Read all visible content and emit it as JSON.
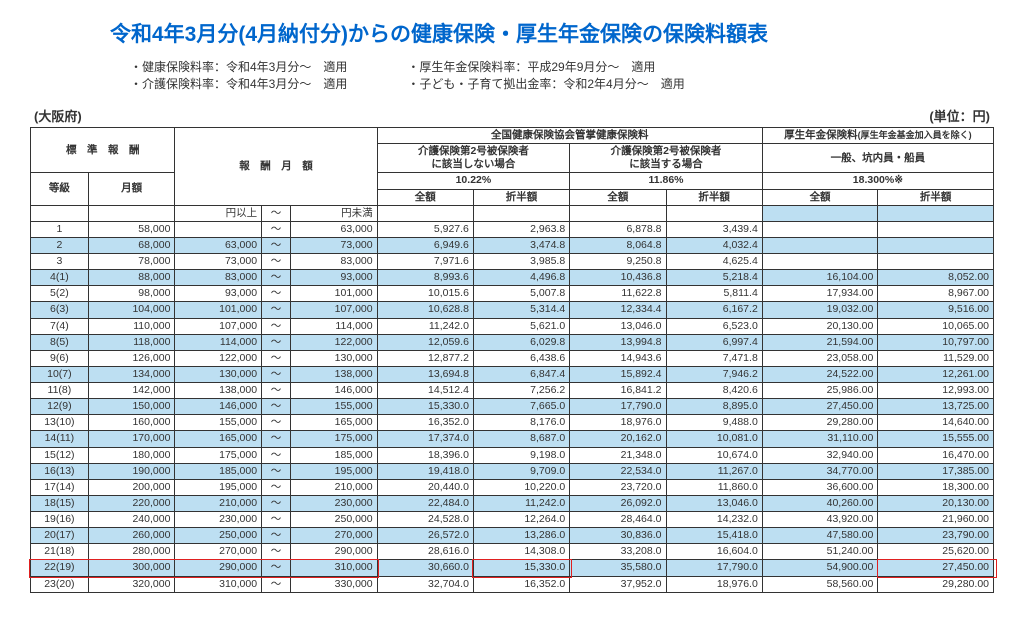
{
  "title": "令和4年3月分(4月納付分)からの健康保険・厚生年金保険の保険料額表",
  "notes": {
    "left1": "・健康保険料率：令和4年3月分～　適用",
    "left2": "・介護保険料率：令和4年3月分～　適用",
    "right1": "・厚生年金保険料率：平成29年9月分～　適用",
    "right2": "・子ども・子育て拠出金率：令和2年4月分～　適用"
  },
  "region": "(大阪府)",
  "unit": "(単位：円)",
  "headers": {
    "std_comp": "標　準　報　酬",
    "monthly_amt": "報　酬　月　額",
    "health": "全国健康保険協会管掌健康保険料",
    "pension": "厚生年金保険料",
    "pension_sub": "(厚生年金基金加入員を除く)",
    "no_care": "介護保険第2号被保険者\nに該当しない場合",
    "care": "介護保険第2号被保険者\nに該当する場合",
    "pension_general": "一般、坑内員・船員",
    "rate_nocare": "10.22%",
    "rate_care": "11.86%",
    "rate_pension": "18.300%※",
    "grade": "等級",
    "monthly": "月額",
    "full": "全額",
    "half": "折半額",
    "yen_more": "円以上",
    "yen_less": "円未満",
    "tilde": "～"
  },
  "rows": [
    {
      "g": "1",
      "m": "58,000",
      "lo": "",
      "hi": "63,000",
      "a": "5,927.6",
      "b": "2,963.8",
      "c": "6,878.8",
      "d": "3,439.4",
      "e": "",
      "f": "",
      "stripe": false
    },
    {
      "g": "2",
      "m": "68,000",
      "lo": "63,000",
      "hi": "73,000",
      "a": "6,949.6",
      "b": "3,474.8",
      "c": "8,064.8",
      "d": "4,032.4",
      "e": "",
      "f": "",
      "stripe": true
    },
    {
      "g": "3",
      "m": "78,000",
      "lo": "73,000",
      "hi": "83,000",
      "a": "7,971.6",
      "b": "3,985.8",
      "c": "9,250.8",
      "d": "4,625.4",
      "e": "",
      "f": "",
      "stripe": false
    },
    {
      "g": "4(1)",
      "m": "88,000",
      "lo": "83,000",
      "hi": "93,000",
      "a": "8,993.6",
      "b": "4,496.8",
      "c": "10,436.8",
      "d": "5,218.4",
      "e": "16,104.00",
      "f": "8,052.00",
      "stripe": true
    },
    {
      "g": "5(2)",
      "m": "98,000",
      "lo": "93,000",
      "hi": "101,000",
      "a": "10,015.6",
      "b": "5,007.8",
      "c": "11,622.8",
      "d": "5,811.4",
      "e": "17,934.00",
      "f": "8,967.00",
      "stripe": false
    },
    {
      "g": "6(3)",
      "m": "104,000",
      "lo": "101,000",
      "hi": "107,000",
      "a": "10,628.8",
      "b": "5,314.4",
      "c": "12,334.4",
      "d": "6,167.2",
      "e": "19,032.00",
      "f": "9,516.00",
      "stripe": true
    },
    {
      "g": "7(4)",
      "m": "110,000",
      "lo": "107,000",
      "hi": "114,000",
      "a": "11,242.0",
      "b": "5,621.0",
      "c": "13,046.0",
      "d": "6,523.0",
      "e": "20,130.00",
      "f": "10,065.00",
      "stripe": false
    },
    {
      "g": "8(5)",
      "m": "118,000",
      "lo": "114,000",
      "hi": "122,000",
      "a": "12,059.6",
      "b": "6,029.8",
      "c": "13,994.8",
      "d": "6,997.4",
      "e": "21,594.00",
      "f": "10,797.00",
      "stripe": true
    },
    {
      "g": "9(6)",
      "m": "126,000",
      "lo": "122,000",
      "hi": "130,000",
      "a": "12,877.2",
      "b": "6,438.6",
      "c": "14,943.6",
      "d": "7,471.8",
      "e": "23,058.00",
      "f": "11,529.00",
      "stripe": false
    },
    {
      "g": "10(7)",
      "m": "134,000",
      "lo": "130,000",
      "hi": "138,000",
      "a": "13,694.8",
      "b": "6,847.4",
      "c": "15,892.4",
      "d": "7,946.2",
      "e": "24,522.00",
      "f": "12,261.00",
      "stripe": true
    },
    {
      "g": "11(8)",
      "m": "142,000",
      "lo": "138,000",
      "hi": "146,000",
      "a": "14,512.4",
      "b": "7,256.2",
      "c": "16,841.2",
      "d": "8,420.6",
      "e": "25,986.00",
      "f": "12,993.00",
      "stripe": false
    },
    {
      "g": "12(9)",
      "m": "150,000",
      "lo": "146,000",
      "hi": "155,000",
      "a": "15,330.0",
      "b": "7,665.0",
      "c": "17,790.0",
      "d": "8,895.0",
      "e": "27,450.00",
      "f": "13,725.00",
      "stripe": true
    },
    {
      "g": "13(10)",
      "m": "160,000",
      "lo": "155,000",
      "hi": "165,000",
      "a": "16,352.0",
      "b": "8,176.0",
      "c": "18,976.0",
      "d": "9,488.0",
      "e": "29,280.00",
      "f": "14,640.00",
      "stripe": false
    },
    {
      "g": "14(11)",
      "m": "170,000",
      "lo": "165,000",
      "hi": "175,000",
      "a": "17,374.0",
      "b": "8,687.0",
      "c": "20,162.0",
      "d": "10,081.0",
      "e": "31,110.00",
      "f": "15,555.00",
      "stripe": true
    },
    {
      "g": "15(12)",
      "m": "180,000",
      "lo": "175,000",
      "hi": "185,000",
      "a": "18,396.0",
      "b": "9,198.0",
      "c": "21,348.0",
      "d": "10,674.0",
      "e": "32,940.00",
      "f": "16,470.00",
      "stripe": false
    },
    {
      "g": "16(13)",
      "m": "190,000",
      "lo": "185,000",
      "hi": "195,000",
      "a": "19,418.0",
      "b": "9,709.0",
      "c": "22,534.0",
      "d": "11,267.0",
      "e": "34,770.00",
      "f": "17,385.00",
      "stripe": true
    },
    {
      "g": "17(14)",
      "m": "200,000",
      "lo": "195,000",
      "hi": "210,000",
      "a": "20,440.0",
      "b": "10,220.0",
      "c": "23,720.0",
      "d": "11,860.0",
      "e": "36,600.00",
      "f": "18,300.00",
      "stripe": false
    },
    {
      "g": "18(15)",
      "m": "220,000",
      "lo": "210,000",
      "hi": "230,000",
      "a": "22,484.0",
      "b": "11,242.0",
      "c": "26,092.0",
      "d": "13,046.0",
      "e": "40,260.00",
      "f": "20,130.00",
      "stripe": true
    },
    {
      "g": "19(16)",
      "m": "240,000",
      "lo": "230,000",
      "hi": "250,000",
      "a": "24,528.0",
      "b": "12,264.0",
      "c": "28,464.0",
      "d": "14,232.0",
      "e": "43,920.00",
      "f": "21,960.00",
      "stripe": false
    },
    {
      "g": "20(17)",
      "m": "260,000",
      "lo": "250,000",
      "hi": "270,000",
      "a": "26,572.0",
      "b": "13,286.0",
      "c": "30,836.0",
      "d": "15,418.0",
      "e": "47,580.00",
      "f": "23,790.00",
      "stripe": true
    },
    {
      "g": "21(18)",
      "m": "280,000",
      "lo": "270,000",
      "hi": "290,000",
      "a": "28,616.0",
      "b": "14,308.0",
      "c": "33,208.0",
      "d": "16,604.0",
      "e": "51,240.00",
      "f": "25,620.00",
      "stripe": false
    },
    {
      "g": "22(19)",
      "m": "300,000",
      "lo": "290,000",
      "hi": "310,000",
      "a": "30,660.0",
      "b": "15,330.0",
      "c": "35,580.0",
      "d": "17,790.0",
      "e": "54,900.00",
      "f": "27,450.00",
      "stripe": true
    },
    {
      "g": "23(20)",
      "m": "320,000",
      "lo": "310,000",
      "hi": "330,000",
      "a": "32,704.0",
      "b": "16,352.0",
      "c": "37,952.0",
      "d": "18,976.0",
      "e": "58,560.00",
      "f": "29,280.00",
      "stripe": false
    }
  ],
  "highlight_row_index": 21,
  "colors": {
    "title": "#0066cc",
    "stripe": "#bddff2",
    "border": "#333333",
    "redbox": "#e02020"
  }
}
